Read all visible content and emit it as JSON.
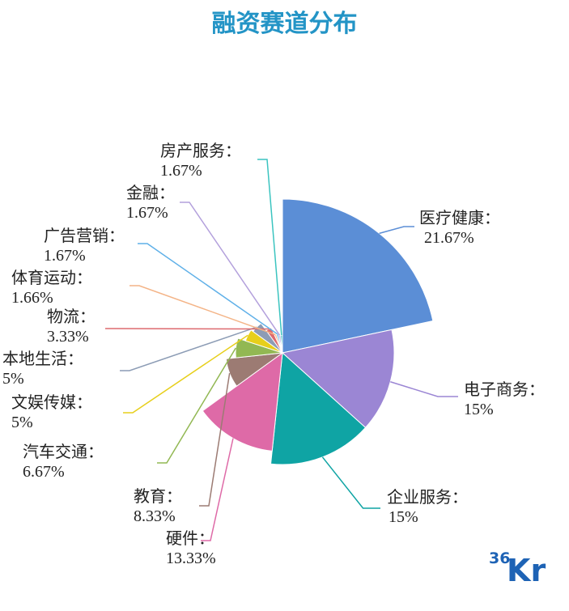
{
  "chart_data": {
    "type": "pie",
    "title": "融资赛道分布",
    "slices": [
      {
        "name": "医疗健康",
        "label": "医疗健康：",
        "value_label": "21.67%",
        "value": 21.67,
        "color": "#5b8ed6"
      },
      {
        "name": "电子商务",
        "label": "电子商务：",
        "value_label": "15%",
        "value": 15,
        "color": "#9b86d4"
      },
      {
        "name": "企业服务",
        "label": "企业服务：",
        "value_label": "15%",
        "value": 15,
        "color": "#0fa4a4"
      },
      {
        "name": "硬件",
        "label": "硬件：",
        "value_label": "13.33%",
        "value": 13.33,
        "color": "#de6aa7"
      },
      {
        "name": "教育",
        "label": "教育：",
        "value_label": "8.33%",
        "value": 8.33,
        "color": "#9c7b73"
      },
      {
        "name": "汽车交通",
        "label": "汽车交通：",
        "value_label": "6.67%",
        "value": 6.67,
        "color": "#92b853"
      },
      {
        "name": "文娱传媒",
        "label": "文娱传媒：",
        "value_label": "5%",
        "value": 5,
        "color": "#e7cf1b"
      },
      {
        "name": "本地生活",
        "label": "本地生活：",
        "value_label": "5%",
        "value": 5,
        "color": "#8c9cb5"
      },
      {
        "name": "物流",
        "label": "物流：",
        "value_label": "3.33%",
        "value": 3.33,
        "color": "#dd6a6f"
      },
      {
        "name": "体育运动",
        "label": "体育运动：",
        "value_label": "1.66%",
        "value": 1.66,
        "color": "#f4b487"
      },
      {
        "name": "广告营销",
        "label": "广告营销：",
        "value_label": "1.67%",
        "value": 1.67,
        "color": "#5fb0e8"
      },
      {
        "name": "金融",
        "label": "金融：",
        "value_label": "1.67%",
        "value": 1.67,
        "color": "#b3a0dc"
      },
      {
        "name": "房产服务",
        "label": "房产服务：",
        "value_label": "1.67%",
        "value": 1.67,
        "color": "#3bc4c0"
      }
    ]
  },
  "logo": {
    "text_num": "36",
    "text_kr": "Kr",
    "color": "#1e63b5"
  }
}
